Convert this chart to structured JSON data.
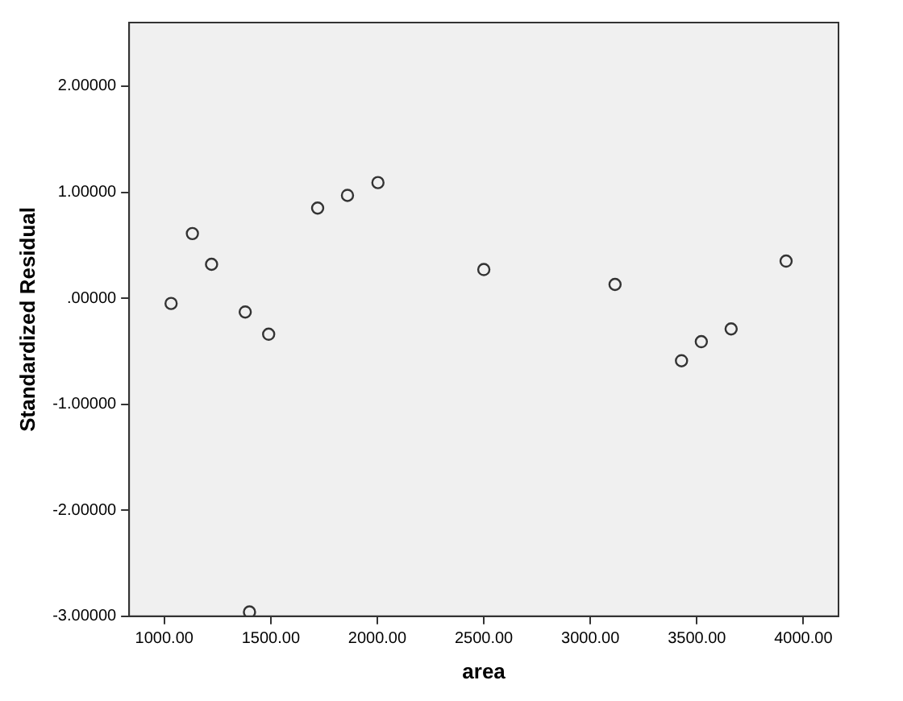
{
  "chart_data": {
    "type": "scatter",
    "xlabel": "area",
    "ylabel": "Standardized Residual",
    "x": [
      1032,
      1132,
      1222,
      1380,
      1400,
      1490,
      1720,
      1860,
      2003,
      2500,
      3116,
      3428,
      3521,
      3661,
      3919
    ],
    "values": [
      -0.05,
      0.61,
      0.32,
      -0.13,
      -2.96,
      -0.34,
      0.85,
      0.97,
      1.09,
      0.27,
      0.13,
      -0.59,
      -0.41,
      -0.29,
      0.35
    ],
    "color": "#333333",
    "marker": "circle",
    "legend": false,
    "grid": false,
    "xlim": [
      835,
      4165
    ],
    "ylim": [
      -3,
      2.6
    ],
    "xticks": [
      {
        "value": 1000,
        "label": "1000.00"
      },
      {
        "value": 1500,
        "label": "1500.00"
      },
      {
        "value": 2000,
        "label": "2000.00"
      },
      {
        "value": 2500,
        "label": "2500.00"
      },
      {
        "value": 3000,
        "label": "3000.00"
      },
      {
        "value": 3500,
        "label": "3500.00"
      },
      {
        "value": 4000,
        "label": "4000.00"
      }
    ],
    "yticks": [
      {
        "value": -3,
        "label": "-3.00000"
      },
      {
        "value": -2,
        "label": "-2.00000"
      },
      {
        "value": -1,
        "label": "-1.00000"
      },
      {
        "value": 0,
        "label": ".00000"
      },
      {
        "value": 1,
        "label": "1.00000"
      },
      {
        "value": 2,
        "label": "2.00000"
      }
    ]
  }
}
